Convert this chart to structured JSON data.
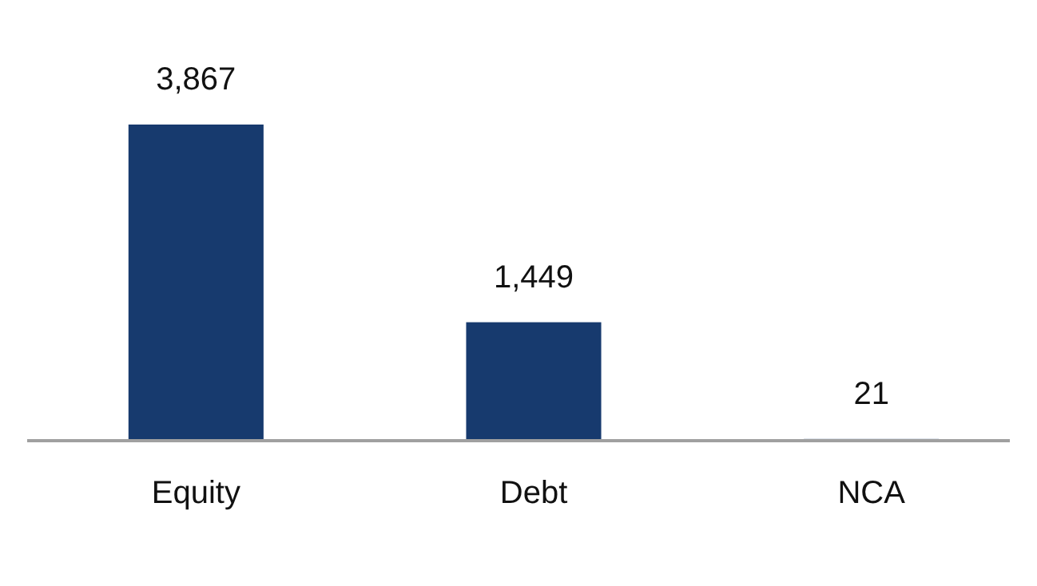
{
  "chart_data": {
    "type": "bar",
    "categories": [
      "Equity",
      "Debt",
      "NCA"
    ],
    "values": [
      3867,
      1449,
      21
    ],
    "value_labels": [
      "3,867",
      "1,449",
      "21"
    ],
    "color": "#173a6e"
  }
}
